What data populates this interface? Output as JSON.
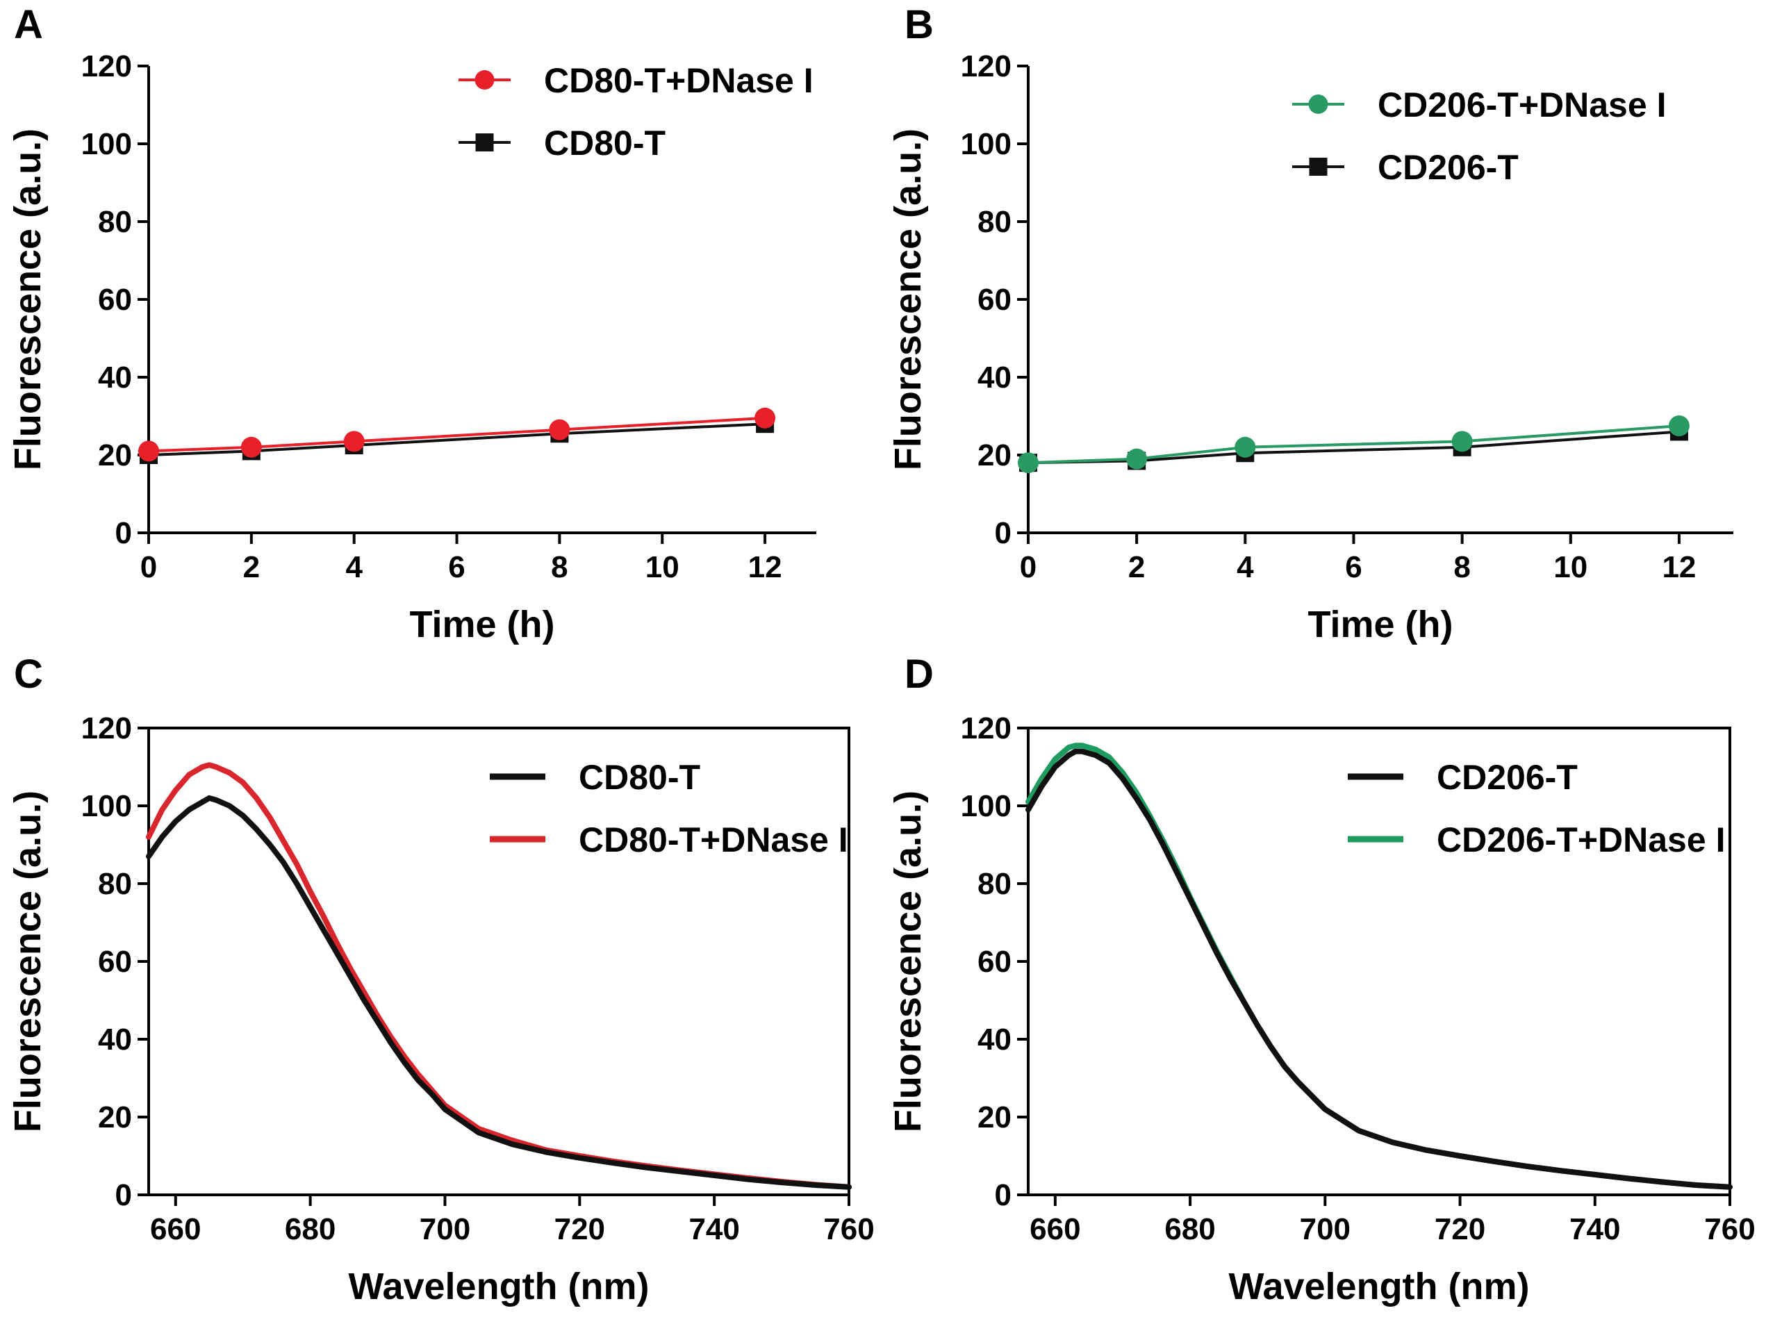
{
  "chart_data": [
    {
      "panel": "A",
      "type": "line",
      "xlabel": "Time (h)",
      "ylabel": "Fluorescence  (a.u.)",
      "xlim": [
        0,
        13
      ],
      "ylim": [
        0,
        120
      ],
      "xticks": [
        0,
        2,
        4,
        6,
        8,
        10,
        12
      ],
      "yticks": [
        0,
        20,
        40,
        60,
        80,
        100,
        120
      ],
      "markers": true,
      "series": [
        {
          "name": "CD80-T+DNase I",
          "color": "#e8202a",
          "marker": "circle",
          "x": [
            0,
            2,
            4,
            8,
            12
          ],
          "y": [
            21,
            22,
            23.5,
            26.5,
            29.5
          ]
        },
        {
          "name": "CD80-T",
          "color": "#111111",
          "marker": "square",
          "x": [
            0,
            2,
            4,
            8,
            12
          ],
          "y": [
            20,
            21,
            22.5,
            25.5,
            28
          ]
        }
      ]
    },
    {
      "panel": "B",
      "type": "line",
      "xlabel": "Time (h)",
      "ylabel": "Fluorescence  (a.u.)",
      "xlim": [
        0,
        13
      ],
      "ylim": [
        0,
        120
      ],
      "xticks": [
        0,
        2,
        4,
        6,
        8,
        10,
        12
      ],
      "yticks": [
        0,
        20,
        40,
        60,
        80,
        100,
        120
      ],
      "markers": true,
      "series": [
        {
          "name": "CD206-T+DNase I",
          "color": "#2a9a64",
          "marker": "circle",
          "x": [
            0,
            2,
            4,
            8,
            12
          ],
          "y": [
            18,
            19,
            22,
            23.5,
            27.5
          ]
        },
        {
          "name": "CD206-T",
          "color": "#111111",
          "marker": "square",
          "x": [
            0,
            2,
            4,
            8,
            12
          ],
          "y": [
            18,
            18.5,
            20.5,
            22,
            26
          ]
        }
      ]
    },
    {
      "panel": "C",
      "type": "line",
      "xlabel": "Wavelength (nm)",
      "ylabel": "Fluorescence  (a.u.)",
      "xlim": [
        656,
        760
      ],
      "ylim": [
        0,
        120
      ],
      "xticks": [
        660,
        680,
        700,
        720,
        740,
        760
      ],
      "yticks": [
        0,
        20,
        40,
        60,
        80,
        100,
        120
      ],
      "markers": false,
      "series": [
        {
          "name": "CD80-T",
          "color": "#111111",
          "x": [
            656,
            658,
            660,
            662,
            664,
            665,
            666,
            668,
            670,
            672,
            674,
            676,
            678,
            680,
            682,
            684,
            686,
            688,
            690,
            692,
            694,
            696,
            698,
            700,
            705,
            710,
            715,
            720,
            725,
            730,
            735,
            740,
            745,
            750,
            755,
            760
          ],
          "y": [
            87,
            92,
            96,
            99,
            101,
            102,
            101.5,
            100,
            97.5,
            94,
            90,
            85.5,
            80,
            74,
            68,
            62,
            56,
            50,
            44.5,
            39,
            34,
            29.5,
            26,
            22,
            16,
            13,
            11,
            9.5,
            8.2,
            7,
            6,
            5,
            4,
            3.2,
            2.5,
            2
          ]
        },
        {
          "name": "CD80-T+DNase I",
          "color": "#d9262c",
          "x": [
            656,
            658,
            660,
            662,
            664,
            665,
            666,
            668,
            670,
            672,
            674,
            676,
            678,
            680,
            682,
            684,
            686,
            688,
            690,
            692,
            694,
            696,
            698,
            700,
            705,
            710,
            715,
            720,
            725,
            730,
            735,
            740,
            745,
            750,
            755,
            760
          ],
          "y": [
            92,
            99,
            104,
            108,
            110,
            110.5,
            110,
            108.5,
            106,
            102,
            97,
            91,
            85,
            78,
            71.5,
            64.5,
            58,
            52,
            46,
            40.5,
            35.5,
            31,
            27,
            23,
            17,
            14,
            11.5,
            10,
            8.6,
            7.4,
            6.3,
            5.3,
            4.3,
            3.4,
            2.6,
            2
          ]
        }
      ]
    },
    {
      "panel": "D",
      "type": "line",
      "xlabel": "Wavelength (nm)",
      "ylabel": "Fluorescence  (a.u.)",
      "xlim": [
        656,
        760
      ],
      "ylim": [
        0,
        120
      ],
      "xticks": [
        660,
        680,
        700,
        720,
        740,
        760
      ],
      "yticks": [
        0,
        20,
        40,
        60,
        80,
        100,
        120
      ],
      "markers": false,
      "series": [
        {
          "name": "CD206-T",
          "color": "#111111",
          "x": [
            656,
            658,
            660,
            662,
            663,
            664,
            666,
            668,
            670,
            672,
            674,
            676,
            678,
            680,
            682,
            684,
            686,
            688,
            690,
            692,
            694,
            696,
            698,
            700,
            705,
            710,
            715,
            720,
            725,
            730,
            735,
            740,
            745,
            750,
            755,
            760
          ],
          "y": [
            99,
            105,
            110,
            113,
            114,
            114,
            113,
            111,
            107,
            102,
            96.5,
            90,
            83,
            76,
            69,
            62,
            55.5,
            49.5,
            43.5,
            38,
            33,
            29,
            25.5,
            22,
            16.5,
            13.5,
            11.5,
            10,
            8.6,
            7.3,
            6.2,
            5.2,
            4.2,
            3.3,
            2.5,
            2
          ]
        },
        {
          "name": "CD206-T+DNase I",
          "color": "#1e9b5e",
          "x": [
            656,
            658,
            660,
            662,
            663,
            664,
            666,
            668,
            670,
            672,
            674,
            676,
            678,
            680,
            682,
            684,
            686,
            688,
            690,
            692,
            694,
            696,
            698,
            700,
            705,
            710,
            715,
            720,
            725,
            730,
            735,
            740,
            745,
            750,
            755,
            760
          ],
          "y": [
            101,
            107,
            112,
            115,
            115.5,
            115.5,
            114.5,
            112.5,
            108.5,
            103.5,
            97.5,
            91,
            84,
            76.5,
            69.5,
            62.5,
            56,
            49.5,
            43.5,
            38,
            33,
            29,
            25.5,
            22,
            16.5,
            13.5,
            11.5,
            10,
            8.6,
            7.3,
            6.2,
            5.2,
            4.2,
            3.3,
            2.5,
            2
          ]
        }
      ]
    }
  ]
}
